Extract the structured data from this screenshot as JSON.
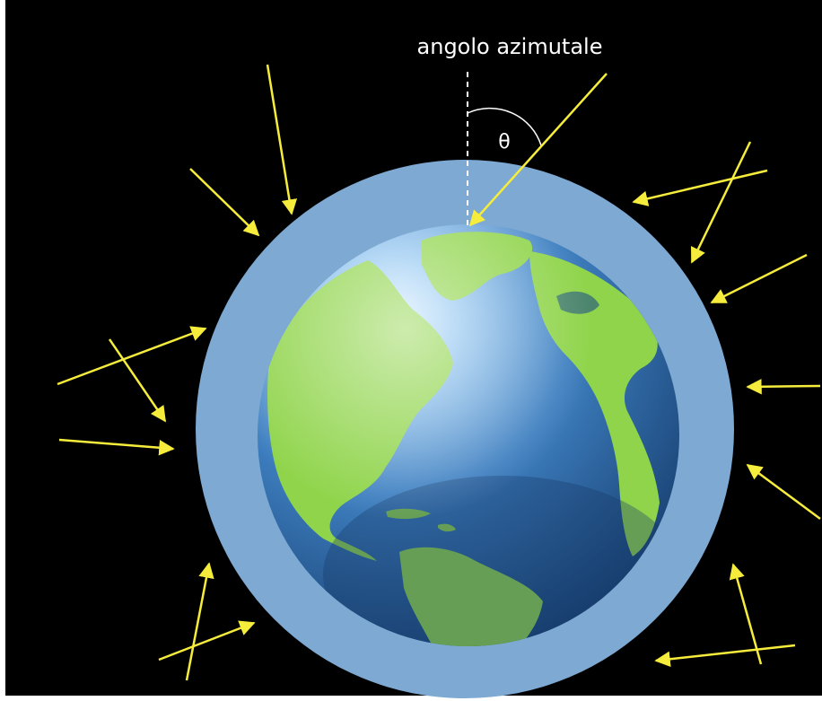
{
  "diagram": {
    "label": "angolo azimutale",
    "symbol": "θ",
    "colors": {
      "background": "#000000",
      "atmosphere": "#7da9d3",
      "ocean_light": "#8fc4f0",
      "ocean_dark": "#1d4e86",
      "land": "#8fd44a",
      "arrow": "#f5ec3c",
      "text": "#ffffff"
    },
    "icons": {
      "globe": "earth-globe-icon",
      "arrow": "incoming-ray-arrow"
    }
  }
}
